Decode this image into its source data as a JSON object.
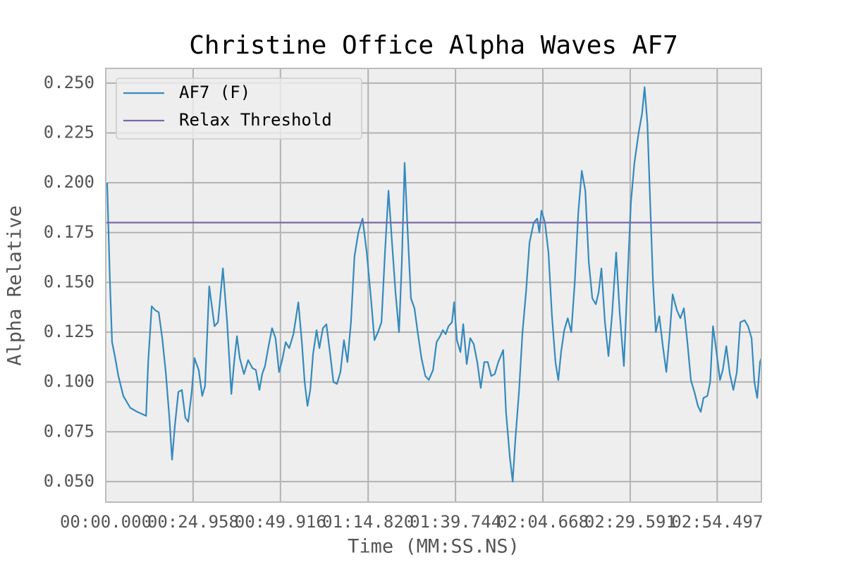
{
  "chart_data": {
    "type": "line",
    "title": "Christine Office Alpha Waves AF7",
    "x_label": "Time (MM:SS.NS)",
    "y_label": "Alpha Relative",
    "xlim": [
      0,
      186.9
    ],
    "ylim": [
      0.0397,
      0.2574
    ],
    "xticks": [
      {
        "value": 0,
        "label": "00:00.000"
      },
      {
        "value": 24.9,
        "label": "00:24.958"
      },
      {
        "value": 49.8,
        "label": "00:49.916"
      },
      {
        "value": 74.8,
        "label": "01:14.820"
      },
      {
        "value": 99.7,
        "label": "01:39.744"
      },
      {
        "value": 124.6,
        "label": "02:04.668"
      },
      {
        "value": 149.5,
        "label": "02:29.591"
      },
      {
        "value": 174.3,
        "label": "02:54.497"
      }
    ],
    "yticks": [
      {
        "value": 0.05,
        "label": "0.050"
      },
      {
        "value": 0.075,
        "label": "0.075"
      },
      {
        "value": 0.1,
        "label": "0.100"
      },
      {
        "value": 0.125,
        "label": "0.125"
      },
      {
        "value": 0.15,
        "label": "0.150"
      },
      {
        "value": 0.175,
        "label": "0.175"
      },
      {
        "value": 0.2,
        "label": "0.200"
      },
      {
        "value": 0.225,
        "label": "0.225"
      },
      {
        "value": 0.25,
        "label": "0.250"
      }
    ],
    "grid": true,
    "legend": "upper left",
    "series": [
      {
        "name": "AF7 (F)",
        "color": "#348abd",
        "x": [
          0.4,
          1.2,
          1.8,
          2.6,
          3.6,
          5.0,
          7.0,
          9.0,
          11.5,
          12.1,
          13.1,
          14.1,
          15.1,
          16.1,
          17.1,
          18.1,
          18.9,
          19.7,
          20.7,
          21.7,
          22.7,
          23.5,
          24.5,
          25.3,
          26.5,
          27.5,
          28.3,
          29.5,
          31.0,
          32.0,
          33.4,
          34.6,
          35.8,
          36.6,
          37.4,
          38.2,
          39.4,
          40.6,
          41.8,
          42.8,
          43.8,
          44.6,
          45.4,
          46.2,
          47.4,
          48.4,
          49.4,
          50.3,
          51.3,
          52.3,
          53.5,
          54.9,
          55.9,
          56.7,
          57.5,
          58.3,
          59.1,
          60.1,
          60.9,
          61.9,
          62.9,
          63.9,
          64.9,
          65.9,
          66.9,
          67.9,
          68.9,
          69.9,
          70.9,
          72.0,
          73.2,
          74.4,
          75.6,
          76.6,
          77.6,
          78.6,
          79.6,
          80.6,
          81.6,
          82.6,
          83.6,
          84.4,
          85.2,
          86.0,
          87.0,
          88.0,
          89.0,
          90.0,
          91.1,
          92.1,
          93.3,
          94.3,
          95.3,
          96.1,
          96.9,
          97.7,
          98.7,
          99.3,
          100.1,
          101.1,
          101.9,
          102.9,
          103.9,
          104.9,
          105.9,
          106.9,
          107.9,
          108.9,
          109.9,
          110.9,
          111.9,
          113.3,
          114.1,
          115.2,
          116.0,
          116.8,
          117.8,
          118.8,
          119.8,
          120.8,
          122.0,
          123.0,
          123.6,
          124.2,
          125.2,
          126.2,
          127.2,
          128.2,
          129.0,
          129.8,
          130.7,
          131.7,
          132.7,
          133.7,
          134.7,
          135.7,
          136.7,
          137.7,
          138.7,
          139.7,
          140.5,
          141.3,
          142.3,
          143.3,
          144.3,
          145.5,
          146.5,
          147.7,
          148.7,
          149.7,
          150.7,
          151.9,
          152.9,
          153.6,
          154.4,
          155.2,
          156.0,
          156.8,
          157.8,
          158.8,
          159.8,
          160.8,
          161.6,
          162.8,
          163.8,
          164.8,
          165.8,
          166.8,
          167.8,
          168.8,
          169.6,
          170.4,
          171.5,
          172.3,
          173.1,
          174.1,
          175.1,
          175.9,
          176.9,
          177.9,
          178.9,
          179.9,
          180.9,
          182.1,
          183.1,
          184.1,
          184.9,
          185.7,
          186.5,
          186.9
        ],
        "values": [
          0.2,
          0.15,
          0.12,
          0.113,
          0.103,
          0.093,
          0.087,
          0.085,
          0.083,
          0.11,
          0.138,
          0.136,
          0.135,
          0.122,
          0.105,
          0.083,
          0.061,
          0.078,
          0.095,
          0.096,
          0.082,
          0.08,
          0.095,
          0.112,
          0.106,
          0.093,
          0.098,
          0.148,
          0.128,
          0.13,
          0.157,
          0.13,
          0.094,
          0.11,
          0.123,
          0.112,
          0.104,
          0.111,
          0.107,
          0.106,
          0.096,
          0.104,
          0.108,
          0.116,
          0.127,
          0.122,
          0.105,
          0.111,
          0.12,
          0.117,
          0.124,
          0.14,
          0.12,
          0.1,
          0.088,
          0.096,
          0.114,
          0.126,
          0.117,
          0.127,
          0.129,
          0.115,
          0.1,
          0.099,
          0.105,
          0.121,
          0.11,
          0.13,
          0.163,
          0.175,
          0.182,
          0.165,
          0.142,
          0.121,
          0.125,
          0.13,
          0.165,
          0.196,
          0.17,
          0.145,
          0.125,
          0.16,
          0.21,
          0.178,
          0.142,
          0.137,
          0.124,
          0.112,
          0.103,
          0.101,
          0.106,
          0.12,
          0.123,
          0.126,
          0.124,
          0.128,
          0.13,
          0.14,
          0.121,
          0.115,
          0.129,
          0.109,
          0.122,
          0.119,
          0.11,
          0.097,
          0.11,
          0.11,
          0.103,
          0.104,
          0.11,
          0.116,
          0.085,
          0.062,
          0.05,
          0.072,
          0.095,
          0.125,
          0.145,
          0.17,
          0.18,
          0.182,
          0.175,
          0.186,
          0.18,
          0.165,
          0.133,
          0.11,
          0.101,
          0.115,
          0.126,
          0.132,
          0.125,
          0.15,
          0.185,
          0.206,
          0.196,
          0.16,
          0.142,
          0.139,
          0.145,
          0.157,
          0.13,
          0.113,
          0.133,
          0.165,
          0.135,
          0.108,
          0.15,
          0.19,
          0.21,
          0.225,
          0.235,
          0.248,
          0.23,
          0.19,
          0.15,
          0.125,
          0.133,
          0.118,
          0.105,
          0.125,
          0.144,
          0.136,
          0.132,
          0.137,
          0.12,
          0.101,
          0.095,
          0.088,
          0.085,
          0.092,
          0.093,
          0.1,
          0.128,
          0.115,
          0.101,
          0.106,
          0.118,
          0.104,
          0.096,
          0.105,
          0.13,
          0.131,
          0.128,
          0.122,
          0.1,
          0.092,
          0.11,
          0.112
        ]
      },
      {
        "name": "Relax Threshold",
        "color": "#7a68a6",
        "x": [
          0,
          186.9
        ],
        "values": [
          0.18,
          0.18
        ]
      }
    ]
  }
}
